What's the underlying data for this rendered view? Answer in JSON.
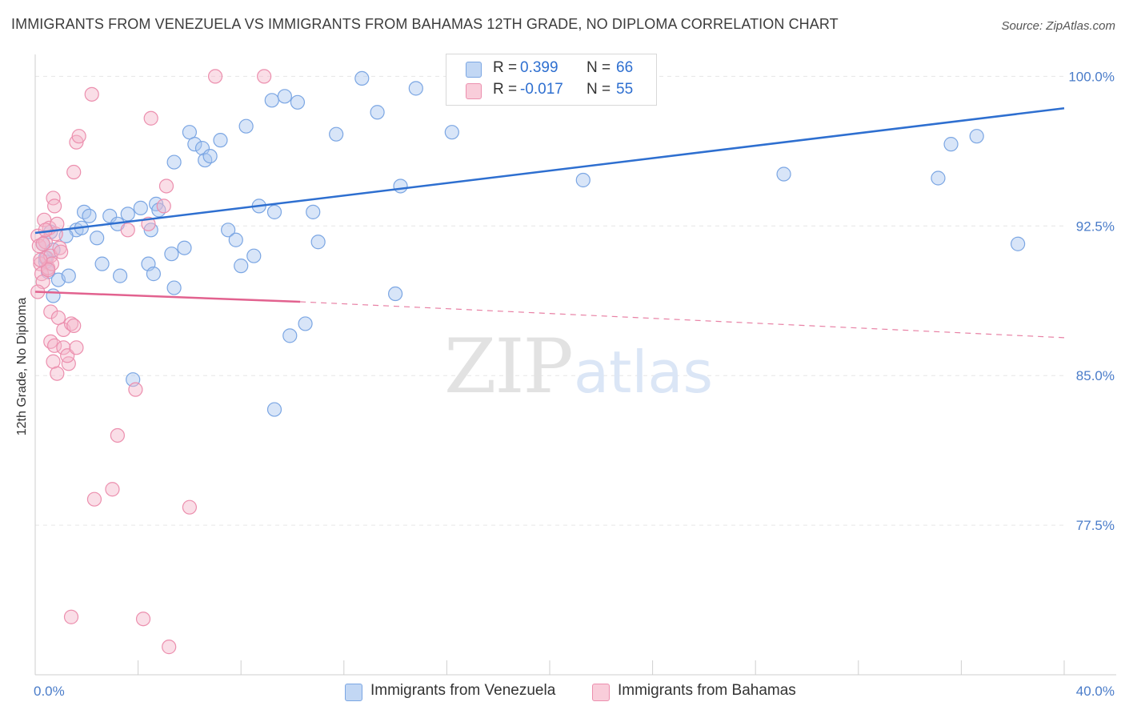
{
  "header": {
    "title": "IMMIGRANTS FROM VENEZUELA VS IMMIGRANTS FROM BAHAMAS 12TH GRADE, NO DIPLOMA CORRELATION CHART",
    "source": "Source: ZipAtlas.com"
  },
  "watermark": {
    "zip": "ZIP",
    "atlas": "atlas"
  },
  "stats": [
    {
      "r_label": "R =",
      "r_value": "0.399",
      "n_label": "N =",
      "n_value": "66",
      "color": "#a9c6ef"
    },
    {
      "r_label": "R =",
      "r_value": "-0.017",
      "n_label": "N =",
      "n_value": "55",
      "color": "#f5b5c9"
    }
  ],
  "legend": [
    {
      "label": "Immigrants from Venezuela",
      "color": "#a9c6ef"
    },
    {
      "label": "Immigrants from Bahamas",
      "color": "#f5b5c9"
    }
  ],
  "chart_data": {
    "type": "scatter",
    "ylabel": "12th Grade, No Diploma",
    "xlim": [
      0,
      40
    ],
    "ylim": [
      70.0,
      101.1
    ],
    "x_ticks": [
      {
        "value": 0,
        "label": "0.0%"
      },
      {
        "value": 40,
        "label": "40.0%"
      }
    ],
    "x_minor_ticks": [
      0,
      4,
      8,
      12,
      16,
      20,
      24,
      28,
      32,
      36,
      40
    ],
    "y_ticks": [
      {
        "value": 100.0,
        "label": "100.0%"
      },
      {
        "value": 92.5,
        "label": "92.5%"
      },
      {
        "value": 85.0,
        "label": "85.0%"
      },
      {
        "value": 77.5,
        "label": "77.5%"
      }
    ],
    "grid": true,
    "legend_position": "bottom",
    "series": [
      {
        "name": "Immigrants from Venezuela",
        "color": "#a9c6ef",
        "stroke": "#7ba6e3",
        "line_color": "#2e6fd0",
        "trend": {
          "x": [
            0,
            40
          ],
          "y": [
            92.15,
            98.4
          ]
        },
        "points": [
          [
            0.3,
            91.6
          ],
          [
            0.4,
            90.7
          ],
          [
            0.5,
            90.2
          ],
          [
            0.7,
            89.0
          ],
          [
            0.6,
            92.2
          ],
          [
            0.7,
            91.3
          ],
          [
            0.9,
            89.8
          ],
          [
            1.3,
            90.0
          ],
          [
            1.6,
            92.3
          ],
          [
            1.8,
            92.4
          ],
          [
            1.9,
            93.2
          ],
          [
            2.1,
            93.0
          ],
          [
            2.6,
            90.6
          ],
          [
            2.9,
            93.0
          ],
          [
            3.2,
            92.6
          ],
          [
            3.3,
            90.0
          ],
          [
            3.6,
            93.1
          ],
          [
            4.1,
            93.4
          ],
          [
            4.4,
            90.6
          ],
          [
            4.5,
            92.3
          ],
          [
            4.7,
            93.6
          ],
          [
            4.6,
            90.1
          ],
          [
            4.8,
            93.3
          ],
          [
            5.3,
            91.1
          ],
          [
            5.4,
            95.7
          ],
          [
            5.8,
            91.4
          ],
          [
            5.4,
            89.4
          ],
          [
            6.0,
            97.2
          ],
          [
            6.2,
            96.6
          ],
          [
            6.5,
            96.4
          ],
          [
            6.6,
            95.8
          ],
          [
            6.8,
            96.0
          ],
          [
            7.2,
            96.8
          ],
          [
            7.5,
            92.3
          ],
          [
            7.8,
            91.8
          ],
          [
            8.0,
            90.5
          ],
          [
            8.2,
            97.5
          ],
          [
            8.5,
            91.0
          ],
          [
            8.7,
            93.5
          ],
          [
            9.2,
            98.8
          ],
          [
            9.3,
            93.2
          ],
          [
            9.7,
            99.0
          ],
          [
            10.2,
            98.7
          ],
          [
            10.8,
            93.2
          ],
          [
            11.0,
            91.7
          ],
          [
            11.7,
            97.1
          ],
          [
            12.7,
            99.9
          ],
          [
            13.3,
            98.2
          ],
          [
            14.0,
            89.1
          ],
          [
            14.2,
            94.5
          ],
          [
            14.8,
            99.4
          ],
          [
            16.2,
            97.2
          ],
          [
            17.4,
            99.9
          ],
          [
            21.3,
            94.8
          ],
          [
            29.1,
            95.1
          ],
          [
            35.1,
            94.9
          ],
          [
            35.6,
            96.6
          ],
          [
            36.6,
            97.0
          ],
          [
            38.2,
            91.6
          ],
          [
            9.9,
            87.0
          ],
          [
            9.3,
            83.3
          ],
          [
            3.8,
            84.8
          ],
          [
            10.5,
            87.6
          ],
          [
            1.2,
            92.0
          ],
          [
            2.4,
            91.9
          ],
          [
            0.4,
            90.9
          ]
        ]
      },
      {
        "name": "Immigrants from Bahamas",
        "color": "#f5b5c9",
        "stroke": "#ec8fae",
        "line_color": "#e2628f",
        "trend": {
          "x": [
            0,
            10.3
          ],
          "y": [
            89.2,
            88.7
          ]
        },
        "trend_dashed": {
          "x": [
            10.3,
            40
          ],
          "y": [
            88.7,
            86.9
          ]
        },
        "points": [
          [
            0.1,
            92.0
          ],
          [
            0.15,
            91.5
          ],
          [
            0.2,
            90.6
          ],
          [
            0.25,
            90.1
          ],
          [
            0.3,
            89.7
          ],
          [
            0.1,
            89.2
          ],
          [
            0.35,
            92.8
          ],
          [
            0.4,
            91.7
          ],
          [
            0.45,
            90.9
          ],
          [
            0.5,
            90.4
          ],
          [
            0.55,
            92.4
          ],
          [
            0.6,
            91.0
          ],
          [
            0.65,
            90.6
          ],
          [
            0.7,
            93.9
          ],
          [
            0.75,
            93.5
          ],
          [
            0.8,
            92.1
          ],
          [
            0.85,
            92.6
          ],
          [
            0.95,
            91.4
          ],
          [
            1.0,
            91.2
          ],
          [
            0.6,
            88.2
          ],
          [
            0.9,
            87.9
          ],
          [
            1.1,
            87.3
          ],
          [
            0.6,
            86.7
          ],
          [
            0.75,
            86.5
          ],
          [
            0.7,
            85.7
          ],
          [
            0.85,
            85.1
          ],
          [
            1.1,
            86.4
          ],
          [
            1.3,
            85.6
          ],
          [
            1.25,
            86.0
          ],
          [
            1.4,
            87.6
          ],
          [
            1.6,
            86.4
          ],
          [
            1.5,
            87.5
          ],
          [
            1.6,
            96.7
          ],
          [
            1.7,
            97.0
          ],
          [
            1.5,
            95.2
          ],
          [
            2.2,
            99.1
          ],
          [
            4.5,
            97.9
          ],
          [
            5.1,
            94.5
          ],
          [
            5.0,
            93.5
          ],
          [
            4.4,
            92.6
          ],
          [
            3.6,
            92.3
          ],
          [
            3.9,
            84.3
          ],
          [
            3.2,
            82.0
          ],
          [
            3.0,
            79.3
          ],
          [
            2.3,
            78.8
          ],
          [
            6.0,
            78.4
          ],
          [
            1.4,
            72.9
          ],
          [
            4.2,
            72.8
          ],
          [
            5.2,
            71.4
          ],
          [
            7.0,
            100.0
          ],
          [
            8.9,
            100.0
          ],
          [
            0.5,
            90.3
          ],
          [
            0.3,
            91.6
          ],
          [
            0.4,
            92.3
          ],
          [
            0.2,
            90.8
          ]
        ]
      }
    ]
  }
}
